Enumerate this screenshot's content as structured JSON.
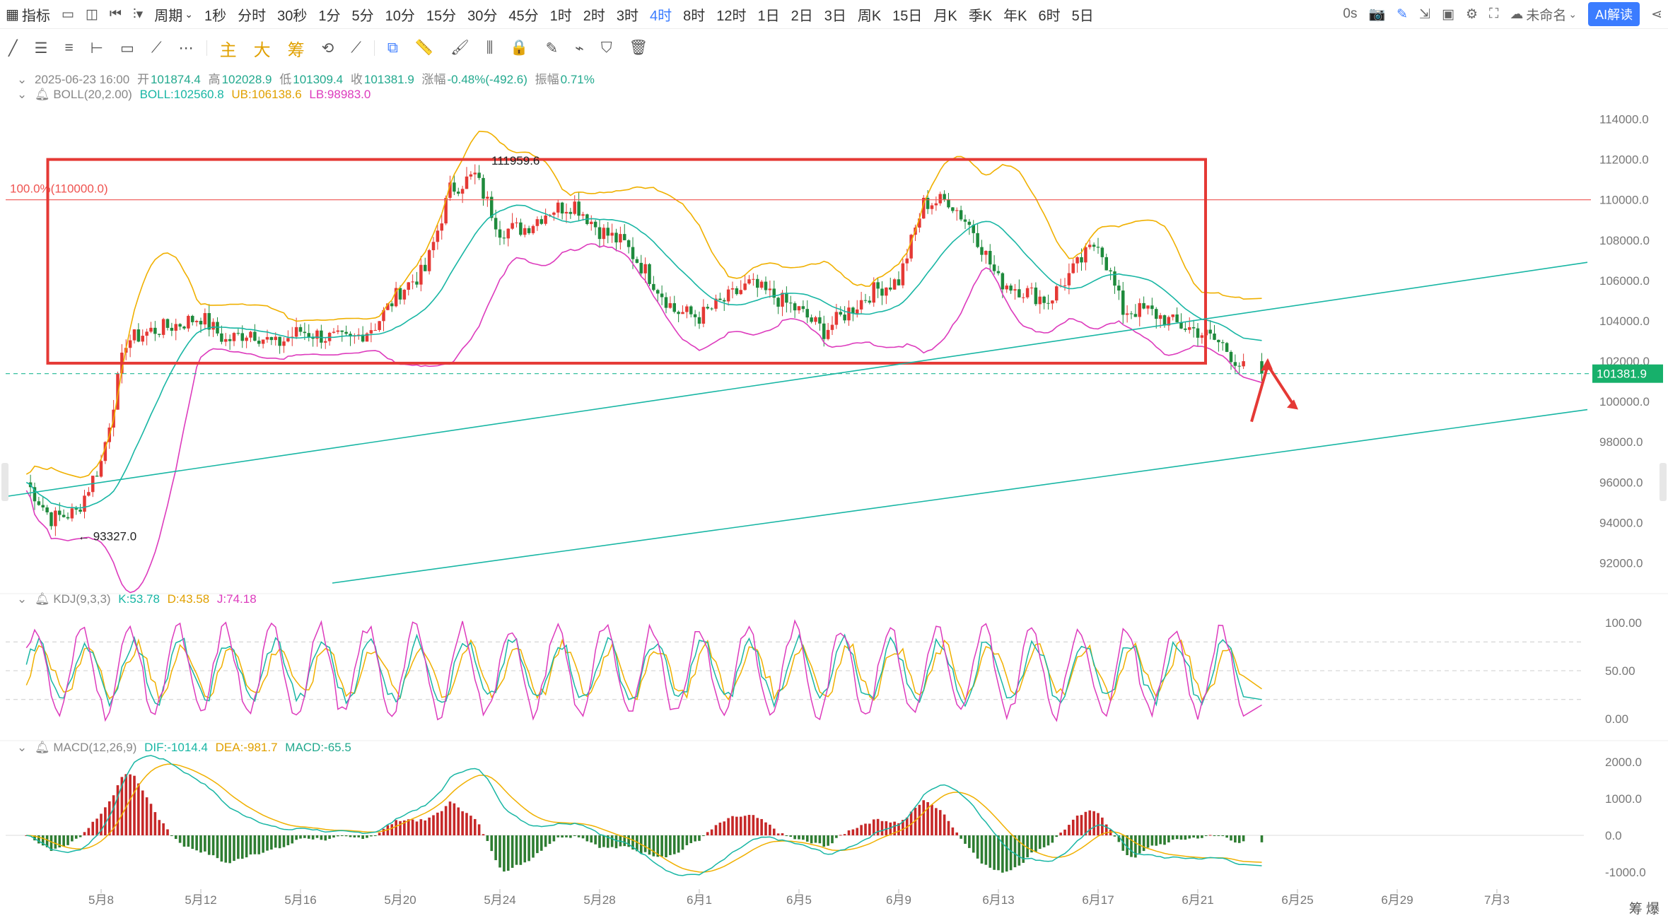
{
  "toolbar": {
    "indicators_label": "指标",
    "period_label": "周期",
    "periods": [
      "1秒",
      "分时",
      "30秒",
      "1分",
      "5分",
      "10分",
      "15分",
      "30分",
      "45分",
      "1时",
      "2时",
      "3时",
      "4时",
      "8时",
      "12时",
      "1日",
      "2日",
      "3日",
      "周K",
      "15日",
      "月K",
      "季K",
      "年K",
      "6时",
      "5日"
    ],
    "active_period": "4时",
    "countdown": "0s",
    "user_name": "未命名",
    "ai_label": "AI解读"
  },
  "draw_toolbar": {
    "indicator_buttons": [
      "主",
      "大",
      "筹"
    ]
  },
  "info": {
    "datetime": "2025-06-23 16:00",
    "open_label": "开",
    "open": "101874.4",
    "high_label": "高",
    "high": "102028.9",
    "low_label": "低",
    "low": "101309.4",
    "close_label": "收",
    "close": "101381.9",
    "change_label": "涨幅",
    "change": "-0.48%(-492.6)",
    "amplitude_label": "振幅",
    "amplitude": "0.71%"
  },
  "boll": {
    "name": "BOLL(20,2.00)",
    "mid": "BOLL:102560.8",
    "ub": "UB:106138.6",
    "lb": "LB:98983.0"
  },
  "kdj": {
    "name": "KDJ(9,3,3)",
    "k": "K:53.78",
    "d": "D:43.58",
    "j": "J:74.18"
  },
  "macd": {
    "name": "MACD(12,26,9)",
    "dif": "DIF:-1014.4",
    "dea": "DEA:-981.7",
    "macd": "MACD:-65.5"
  },
  "annotations": {
    "fib_label": "100.0%(110000.0)",
    "high_marker": "111959.6",
    "low_marker": "93327.0",
    "current_price": "101381.9"
  },
  "bottom_right": "筹 爆",
  "colors": {
    "up": "#e53935",
    "down": "#1e8a3c",
    "boll_mid": "#18b6a4",
    "boll_ub": "#f0b000",
    "boll_lb": "#dd3bbd",
    "trendline": "#18b6a4",
    "box": "#e53935"
  },
  "chart_data": {
    "type": "candlestick",
    "timeframe": "4h",
    "price_axis_ticks": [
      92000,
      94000,
      96000,
      98000,
      100000,
      102000,
      104000,
      106000,
      108000,
      110000,
      112000,
      114000
    ],
    "price_axis_labels": [
      "92000.0",
      "94000.0",
      "96000.0",
      "98000.0",
      "100000.0",
      "102000.0",
      "104000.0",
      "106000.0",
      "108000.0",
      "110000.0",
      "112000.0",
      "114000.0"
    ],
    "date_labels": [
      "5月8",
      "5月12",
      "5月16",
      "5月20",
      "5月24",
      "5月28",
      "6月1",
      "6月5",
      "6月9",
      "6月13",
      "6月17",
      "6月21",
      "6月25",
      "6月29",
      "7月3"
    ],
    "kdj_ticks": [
      0,
      50,
      100
    ],
    "kdj_labels": [
      "0.00",
      "50.00",
      "100.00"
    ],
    "macd_ticks": [
      -1000,
      0,
      1000,
      2000
    ],
    "macd_labels": [
      "-1000.0",
      "0.0",
      "1000.0",
      "2000.0"
    ],
    "close_path": [
      [
        "5月5",
        96000
      ],
      [
        "5月6",
        94200
      ],
      [
        "5月7",
        94500
      ],
      [
        "5月8",
        97000
      ],
      [
        "5月9",
        103000
      ],
      [
        "5月10",
        103500
      ],
      [
        "5月11",
        103800
      ],
      [
        "5月12",
        104200
      ],
      [
        "5月13",
        103000
      ],
      [
        "5月14",
        103500
      ],
      [
        "5月15",
        102800
      ],
      [
        "5月16",
        103500
      ],
      [
        "5月17",
        103200
      ],
      [
        "5月18",
        103000
      ],
      [
        "5月19",
        103800
      ],
      [
        "5月20",
        105500
      ],
      [
        "5月21",
        106500
      ],
      [
        "5月22",
        110500
      ],
      [
        "5月23",
        111200
      ],
      [
        "5月24",
        108500
      ],
      [
        "5月25",
        108600
      ],
      [
        "5月26",
        109500
      ],
      [
        "5月27",
        109800
      ],
      [
        "5月28",
        108500
      ],
      [
        "5月29",
        107800
      ],
      [
        "5月30",
        106200
      ],
      [
        "5月31",
        104500
      ],
      [
        "6月1",
        104200
      ],
      [
        "6月2",
        105000
      ],
      [
        "6月3",
        105800
      ],
      [
        "6月4",
        105200
      ],
      [
        "6月5",
        104500
      ],
      [
        "6月6",
        103500
      ],
      [
        "6月7",
        104500
      ],
      [
        "6月8",
        105500
      ],
      [
        "6月9",
        106000
      ],
      [
        "6月10",
        109800
      ],
      [
        "6月11",
        110000
      ],
      [
        "6月12",
        108500
      ],
      [
        "6月13",
        106000
      ],
      [
        "6月14",
        105500
      ],
      [
        "6月15",
        105000
      ],
      [
        "6月16",
        106500
      ],
      [
        "6月17",
        108000
      ],
      [
        "6月18",
        104500
      ],
      [
        "6月19",
        104500
      ],
      [
        "6月20",
        103900
      ],
      [
        "6月21",
        103500
      ],
      [
        "6月22",
        102800
      ],
      [
        "6月23",
        101381.9
      ]
    ],
    "box": {
      "top_price": 112000,
      "bottom_price": 101900,
      "start_date": "5月6",
      "end_date": "6月25"
    },
    "fib_line_price": 110000,
    "current_price": 101381.9
  }
}
